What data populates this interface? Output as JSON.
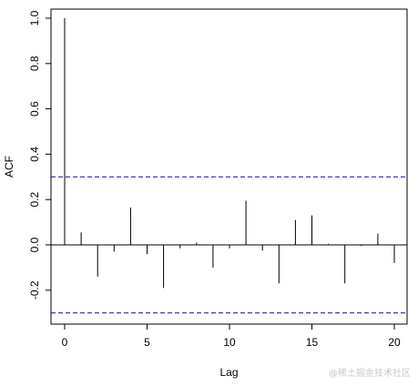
{
  "chart_data": {
    "type": "bar",
    "subtype": "acf-lollipop",
    "xlabel": "Lag",
    "ylabel": "ACF",
    "xlim": [
      0,
      20
    ],
    "ylim": [
      -0.3,
      1.0
    ],
    "xticks": [
      0,
      5,
      10,
      15,
      20
    ],
    "yticks": [
      -0.2,
      0.0,
      0.2,
      0.4,
      0.6,
      0.8,
      1.0
    ],
    "ytick_labels": [
      "-0.2",
      "0.0",
      "0.2",
      "0.4",
      "0.6",
      "0.8",
      "1.0"
    ],
    "confidence_band": 0.3,
    "confidence_color": "#0000cc",
    "series": [
      {
        "x": [
          0,
          1,
          2,
          3,
          4,
          5,
          6,
          7,
          8,
          9,
          10,
          11,
          12,
          13,
          14,
          15,
          16,
          17,
          18,
          19,
          20
        ],
        "values": [
          1.0,
          0.055,
          -0.14,
          -0.03,
          0.165,
          -0.04,
          -0.19,
          -0.015,
          0.01,
          -0.1,
          -0.015,
          0.195,
          -0.025,
          -0.17,
          0.11,
          0.13,
          0.005,
          -0.17,
          -0.005,
          0.05,
          -0.08
        ]
      }
    ],
    "grid": false,
    "legend": "none"
  },
  "watermark": "@稀土掘金技术社区"
}
